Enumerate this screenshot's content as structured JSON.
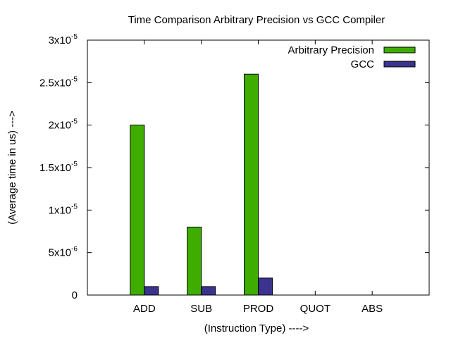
{
  "chart_data": {
    "type": "bar",
    "title": "Time Comparison Arbitrary Precision vs GCC Compiler",
    "xlabel": "(Instruction Type) ---->",
    "ylabel": "(Average time in us) --->",
    "categories": [
      "ADD",
      "SUB",
      "PROD",
      "QUOT",
      "ABS"
    ],
    "series": [
      {
        "name": "Arbitrary Precision",
        "color": "#3fad00",
        "values": [
          2e-05,
          8e-06,
          2.6e-05,
          0,
          0
        ]
      },
      {
        "name": "GCC",
        "color": "#3b338e",
        "values": [
          1e-06,
          1e-06,
          2e-06,
          0,
          0
        ]
      }
    ],
    "ylim": [
      0,
      3e-05
    ],
    "yticks": [
      {
        "value": 0,
        "mant": "0",
        "exp": ""
      },
      {
        "value": 5e-06,
        "mant": "5x10",
        "exp": "-6"
      },
      {
        "value": 1e-05,
        "mant": "1x10",
        "exp": "-5"
      },
      {
        "value": 1.5e-05,
        "mant": "1.5x10",
        "exp": "-5"
      },
      {
        "value": 2e-05,
        "mant": "2x10",
        "exp": "-5"
      },
      {
        "value": 2.5e-05,
        "mant": "2.5x10",
        "exp": "-5"
      },
      {
        "value": 3e-05,
        "mant": "3x10",
        "exp": "-5"
      }
    ],
    "legend": "top-right",
    "grid": false
  }
}
